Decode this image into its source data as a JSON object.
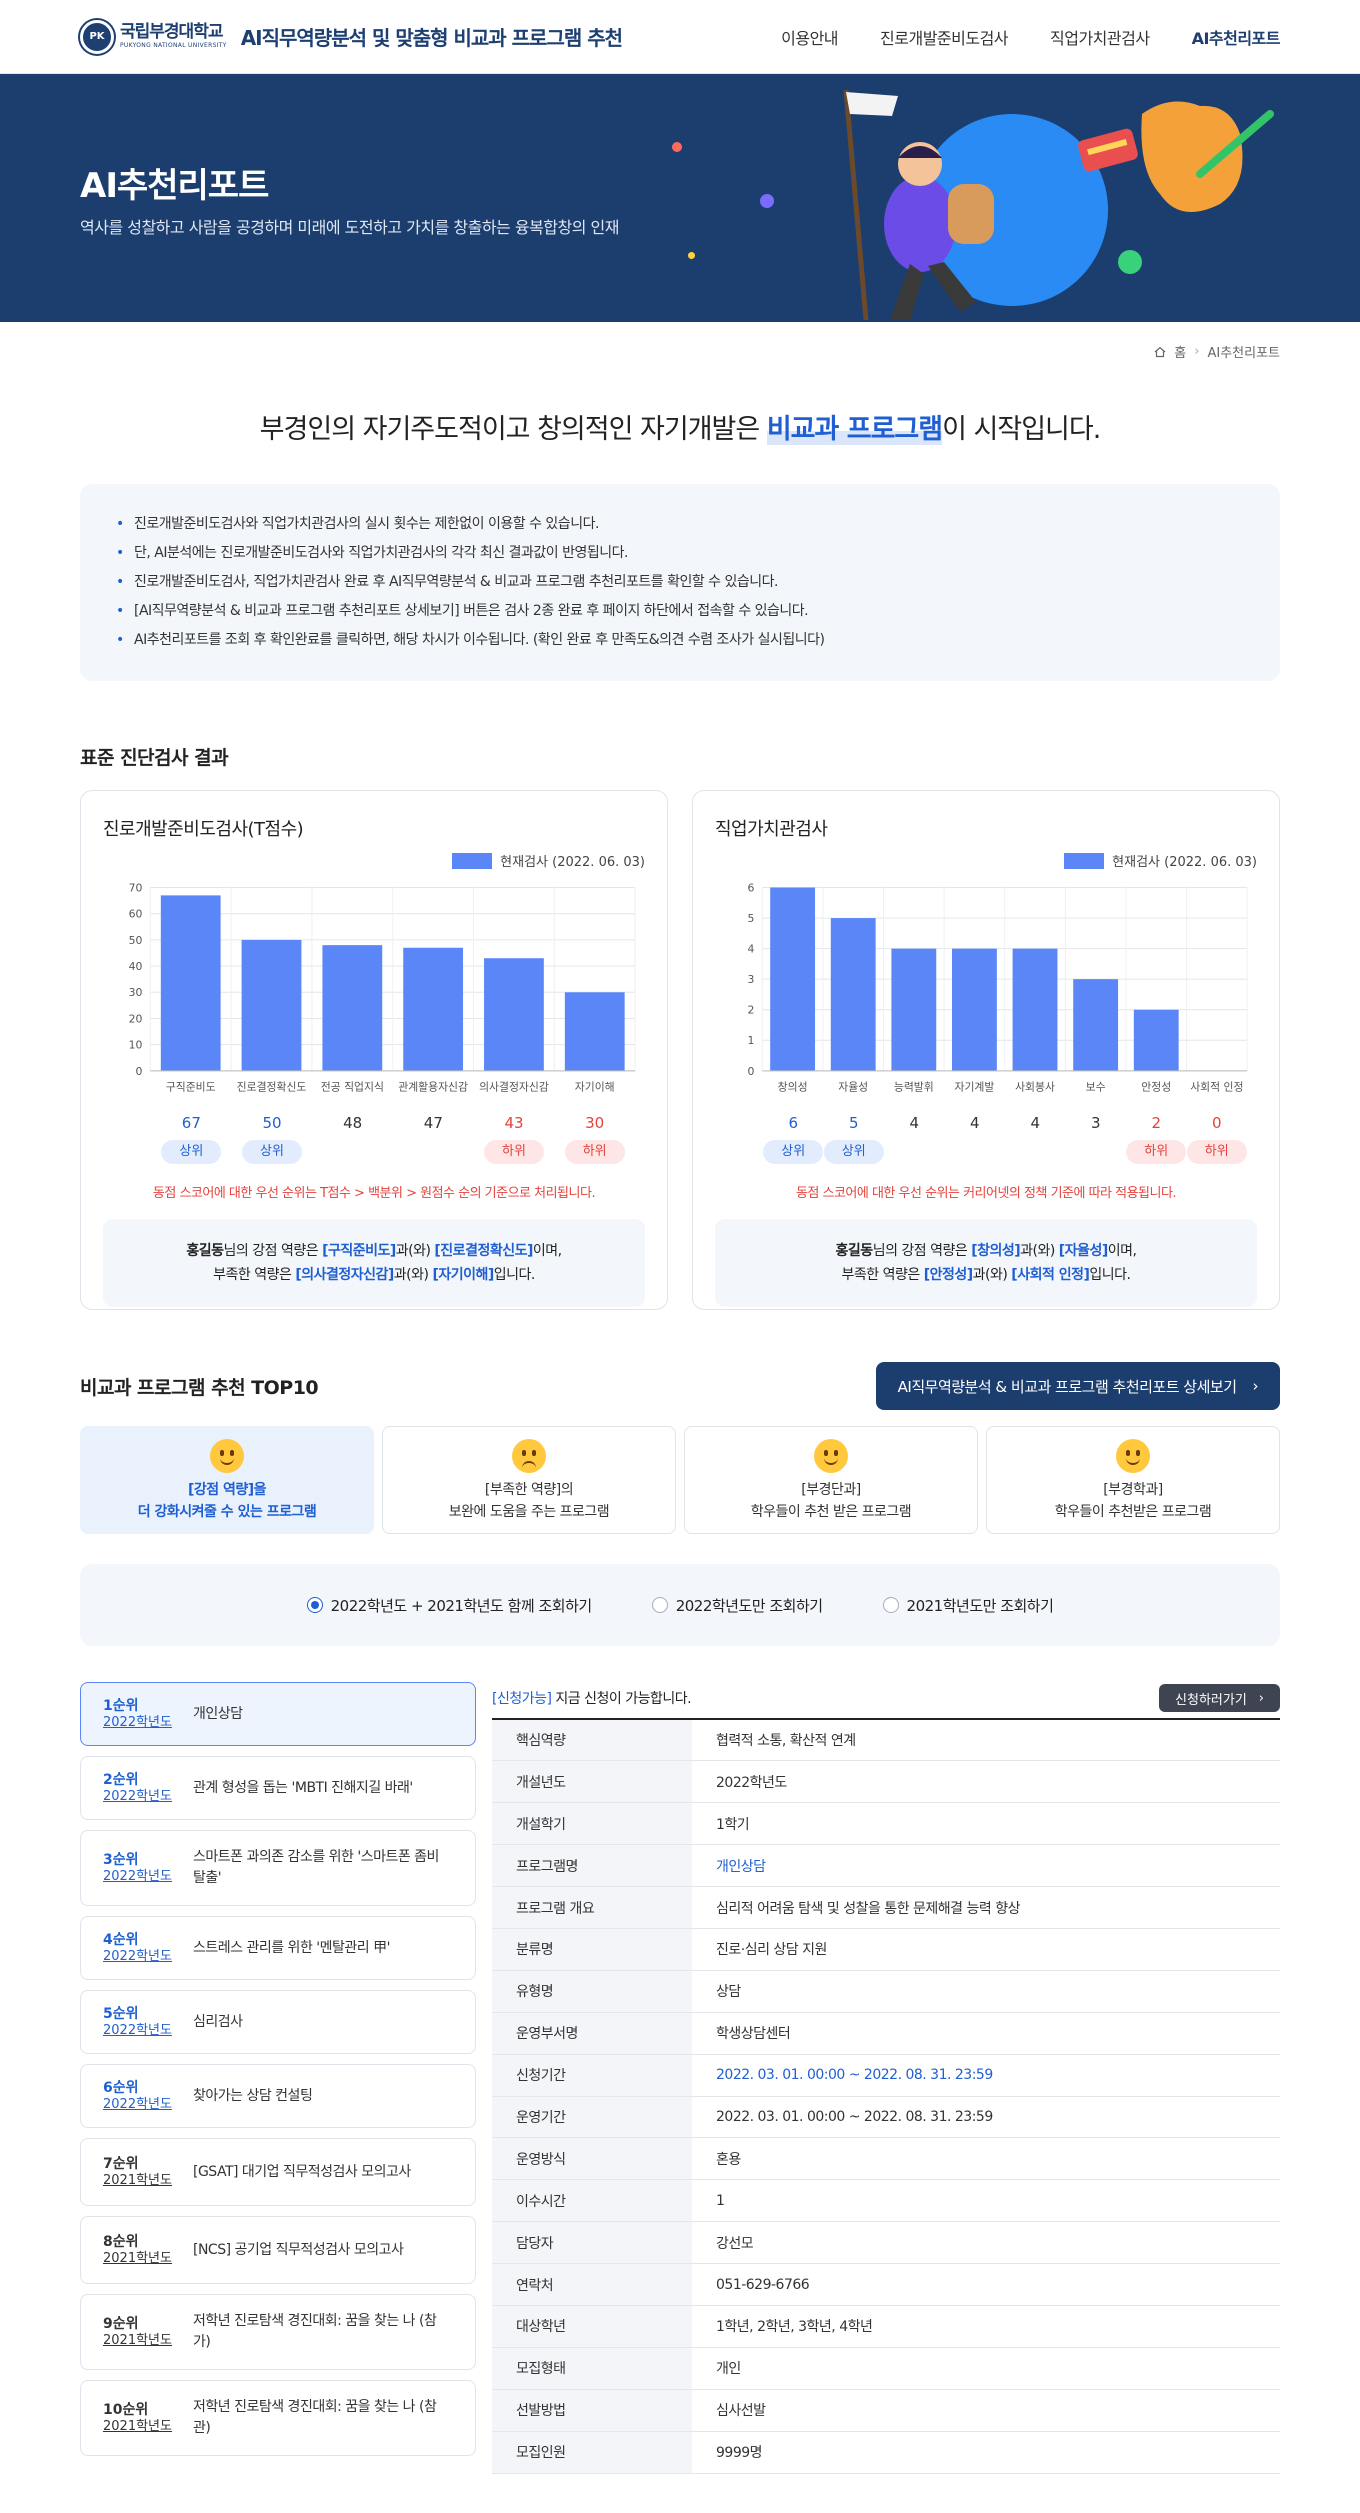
{
  "header": {
    "logo_kr": "국립부경대학교",
    "logo_en": "PUKYONG NATIONAL UNIVERSITY",
    "site_title": "AI직무역량분석 및 맞춤형 비교과 프로그램 추천",
    "nav": [
      "이용안내",
      "진로개발준비도검사",
      "직업가치관검사",
      "AI추천리포트"
    ]
  },
  "hero": {
    "title": "AI추천리포트",
    "subtitle": "역사를 성찰하고 사람을 공경하며 미래에 도전하고 가치를 창출하는 융복합창의 인재"
  },
  "breadcrumb": {
    "home": "홈",
    "current": "AI추천리포트"
  },
  "intro": {
    "before": "부경인의 자기주도적이고 창의적인 자기개발은 ",
    "highlight": "비교과 프로그램",
    "after": "이 시작입니다."
  },
  "notices": [
    "진로개발준비도검사와 직업가치관검사의 실시 횟수는 제한없이 이용할 수 있습니다.",
    "단, AI분석에는 진로개발준비도검사와 직업가치관검사의 각각 최신 결과값이 반영됩니다.",
    "진로개발준비도검사, 직업가치관검사 완료 후 AI직무역량분석 & 비교과 프로그램 추천리포트를 확인할 수 있습니다.",
    "[AI직무역량분석 & 비교과 프로그램 추천리포트 상세보기] 버튼은 검사 2종 완료 후 페이지 하단에서 접속할 수 있습니다.",
    "AI추천리포트를 조회 후 확인완료를 클릭하면, 해당 차시가 이수됩니다. (확인 완료 후 만족도&의견 수렴 조사가 실시됩니다)"
  ],
  "results_title": "표준 진단검사 결과",
  "card1": {
    "title": "진로개발준비도검사(T점수)",
    "legend": "현재검사 (2022. 06. 03)",
    "warn": "동점 스코어에 대한 우선 순위는 T점수 > 백분위 > 원점수 순의 기준으로 처리됩니다.",
    "summary": {
      "name": "홍길동",
      "s1": "님의 강점 역량은 ",
      "a": "[구직준비도]",
      "s2": "과(와) ",
      "b": "[진로결정확신도]",
      "s3": "이며,",
      "s4": "부족한 역량은 ",
      "c": "[의사결정자신감]",
      "s5": "과(와) ",
      "d": "[자기이해]",
      "s6": "입니다."
    }
  },
  "card2": {
    "title": "직업가치관검사",
    "legend": "현재검사 (2022. 06. 03)",
    "warn": "동점 스코어에 대한 우선 순위는 커리어넷의 정책 기준에 따라 적용됩니다.",
    "summary": {
      "name": "홍길동",
      "s1": "님의 강점 역량은 ",
      "a": "[창의성]",
      "s2": "과(와) ",
      "b": "[자율성]",
      "s3": "이며,",
      "s4": "부족한 역량은 ",
      "c": "[안정성]",
      "s5": "과(와) ",
      "d": "[사회적 인정]",
      "s6": "입니다."
    }
  },
  "chart_data": [
    {
      "type": "bar",
      "categories": [
        "구직준비도",
        "진로결정확신도",
        "전공 직업지식",
        "관계활용자신감",
        "의사결정자신감",
        "자기이해"
      ],
      "series": [
        {
          "name": "현재검사 (2022. 06. 03)",
          "values": [
            67,
            50,
            48,
            47,
            43,
            30
          ]
        }
      ],
      "ylim": [
        0,
        70
      ],
      "yticks": [
        0,
        10,
        20,
        30,
        40,
        50,
        60,
        70
      ],
      "labels": [
        "상위",
        "상위",
        "",
        "",
        "하위",
        "하위"
      ],
      "color": "#5b86f7",
      "grid": true
    },
    {
      "type": "bar",
      "categories": [
        "창의성",
        "자율성",
        "능력발휘",
        "자기계발",
        "사회봉사",
        "보수",
        "안정성",
        "사회적 인정"
      ],
      "series": [
        {
          "name": "현재검사 (2022. 06. 03)",
          "values": [
            6,
            5,
            4,
            4,
            4,
            3,
            2,
            0
          ]
        }
      ],
      "ylim": [
        0,
        6
      ],
      "yticks": [
        0,
        1,
        2,
        3,
        4,
        5,
        6
      ],
      "labels": [
        "상위",
        "상위",
        "",
        "",
        "",
        "",
        "하위",
        "하위"
      ],
      "color": "#5b86f7",
      "grid": true
    }
  ],
  "top10": {
    "title": "비교과 프로그램 추천 TOP10",
    "detail_button": "AI직무역량분석 & 비교과 프로그램 추천리포트 상세보기",
    "types": [
      {
        "l1": "[강점 역량]을",
        "l2": "더 강화시켜줄 수 있는 프로그램"
      },
      {
        "l1": "[부족한 역량]의",
        "l2": "보완에 도움을 주는 프로그램"
      },
      {
        "l1": "[부경단과]",
        "l2": "학우들이 추천 받은 프로그램"
      },
      {
        "l1": "[부경학과]",
        "l2": "학우들이 추천받은 프로그램"
      }
    ],
    "radios": [
      "2022학년도 + 2021학년도 함께 조회하기",
      "2022학년도만 조회하기",
      "2021학년도만 조회하기"
    ],
    "ranks": [
      {
        "no": "1순위",
        "year": "2022학년도",
        "name": "개인상담"
      },
      {
        "no": "2순위",
        "year": "2022학년도",
        "name": "관계 형성을 돕는 'MBTI 진해지길 바래'"
      },
      {
        "no": "3순위",
        "year": "2022학년도",
        "name": "스마트폰 과의존 감소를 위한 '스마트폰 좀비 탈출'"
      },
      {
        "no": "4순위",
        "year": "2022학년도",
        "name": "스트레스 관리를 위한 '멘탈관리 甲'"
      },
      {
        "no": "5순위",
        "year": "2022학년도",
        "name": "심리검사"
      },
      {
        "no": "6순위",
        "year": "2022학년도",
        "name": "찾아가는 상담 컨설팅"
      },
      {
        "no": "7순위",
        "year": "2021학년도",
        "name": "[GSAT] 대기업 직무적성검사 모의고사"
      },
      {
        "no": "8순위",
        "year": "2021학년도",
        "name": "[NCS] 공기업 직무적성검사 모의고사"
      },
      {
        "no": "9순위",
        "year": "2021학년도",
        "name": "저학년 진로탐색 경진대회: 꿈을 찾는 나 (참가)"
      },
      {
        "no": "10순위",
        "year": "2021학년도",
        "name": "저학년 진로탐색 경진대회: 꿈을 찾는 나 (참관)"
      }
    ],
    "status_tag": "[신청가능]",
    "status_text": " 지금 신청이 가능합니다.",
    "apply_button": "신청하러가기",
    "detail_rows": [
      {
        "k": "핵심역량",
        "v": "협력적 소통, 확산적 연계"
      },
      {
        "k": "개설년도",
        "v": "2022학년도"
      },
      {
        "k": "개설학기",
        "v": "1학기"
      },
      {
        "k": "프로그램명",
        "v": "개인상담",
        "blue": true
      },
      {
        "k": "프로그램 개요",
        "v": "심리적 어려움 탐색 및 성찰을 통한 문제해결 능력 향상"
      },
      {
        "k": "분류명",
        "v": "진로·심리 상담 지원"
      },
      {
        "k": "유형명",
        "v": "상담"
      },
      {
        "k": "운영부서명",
        "v": "학생상담센터"
      },
      {
        "k": "신청기간",
        "v": "2022. 03. 01. 00:00 ~ 2022. 08. 31. 23:59",
        "blue": true
      },
      {
        "k": "운영기간",
        "v": "2022. 03. 01. 00:00 ~ 2022. 08. 31. 23:59"
      },
      {
        "k": "운영방식",
        "v": "혼용"
      },
      {
        "k": "이수시간",
        "v": "1"
      },
      {
        "k": "담당자",
        "v": "강선모"
      },
      {
        "k": "연락처",
        "v": "051-629-6766"
      },
      {
        "k": "대상학년",
        "v": "1학년, 2학년, 3학년, 4학년"
      },
      {
        "k": "모집형태",
        "v": "개인"
      },
      {
        "k": "선발방법",
        "v": "심사선발"
      },
      {
        "k": "모집인원",
        "v": "9999명"
      }
    ]
  }
}
